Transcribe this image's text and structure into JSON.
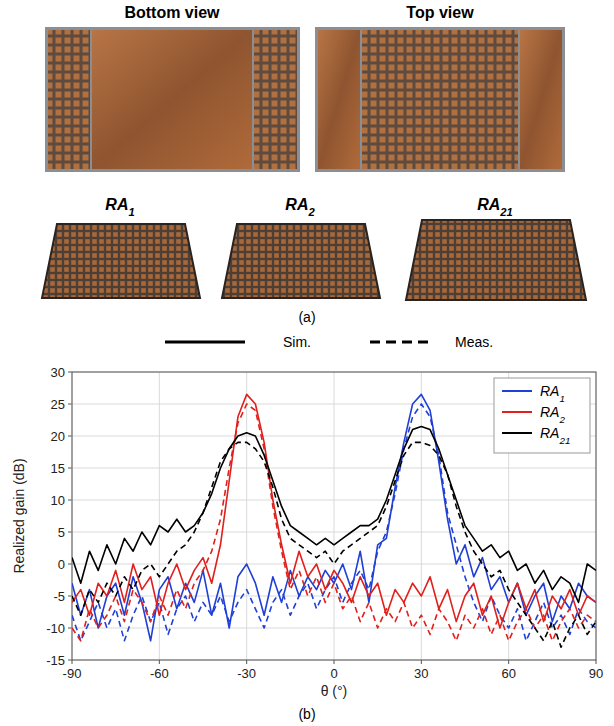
{
  "figure": {
    "panel_a": {
      "views": [
        "Bottom view",
        "Top view"
      ],
      "prototypes": [
        "RA1",
        "RA2",
        "RA21"
      ],
      "caption": "(a)"
    },
    "panel_b": {
      "caption": "(b)"
    }
  },
  "chart_data": {
    "type": "line",
    "x_label": "θ (°)",
    "y_label": "Realized gain (dB)",
    "annotations": [
      {
        "text": "Sim.",
        "line_style": "solid"
      },
      {
        "text": "Meas.",
        "line_style": "dashed"
      }
    ],
    "x": [
      -90,
      -87,
      -84,
      -81,
      -78,
      -75,
      -72,
      -69,
      -66,
      -63,
      -60,
      -57,
      -54,
      -51,
      -48,
      -45,
      -42,
      -39,
      -36,
      -33,
      -30,
      -27,
      -24,
      -21,
      -18,
      -15,
      -12,
      -9,
      -6,
      -3,
      0,
      3,
      6,
      9,
      12,
      15,
      18,
      21,
      24,
      27,
      30,
      33,
      36,
      39,
      42,
      45,
      48,
      51,
      54,
      57,
      60,
      63,
      66,
      69,
      72,
      75,
      78,
      81,
      84,
      87,
      90
    ],
    "xlim": [
      -90,
      90
    ],
    "xticks": [
      -90,
      -60,
      -30,
      0,
      30,
      60,
      90
    ],
    "ylim": [
      -15,
      30
    ],
    "yticks": [
      -15,
      -10,
      -5,
      0,
      5,
      10,
      15,
      20,
      25,
      30
    ],
    "grid": true,
    "legend": "upper right",
    "series": [
      {
        "name": "RA1",
        "color": "#1f3fd6",
        "line_style": "solid",
        "values": [
          -3,
          -8,
          -4,
          -10,
          -5,
          -3,
          -8,
          -2,
          -6,
          -12,
          -4,
          -2,
          -7,
          -3,
          -6,
          -1,
          -8,
          -3,
          -10,
          -2,
          0,
          -3,
          -8,
          -2,
          -6,
          -1,
          -5,
          -2,
          -4,
          -1,
          -3,
          0,
          -4,
          2,
          -6,
          3,
          4,
          12,
          19,
          25,
          26.5,
          24,
          16,
          7,
          0,
          3,
          -2,
          1,
          -4,
          -2,
          -6,
          -3,
          -8,
          -5,
          -3,
          -9,
          -5,
          -7,
          -3,
          -5,
          -6
        ]
      },
      {
        "name": "RA1",
        "color": "#1f3fd6",
        "line_style": "dashed",
        "values": [
          -8,
          -12,
          -9,
          -6,
          -10,
          -7,
          -12,
          -8,
          -5,
          -9,
          -6,
          -11,
          -7,
          -5,
          -9,
          -6,
          -8,
          -5,
          -9,
          -6,
          -4,
          -7,
          -10,
          -6,
          -4,
          -8,
          -5,
          -3,
          -7,
          -4,
          -2,
          -6,
          -3,
          -1,
          -4,
          2,
          5,
          11,
          18,
          23,
          25,
          23,
          17,
          8,
          3,
          -2,
          -6,
          -9,
          -5,
          -8,
          -10,
          -7,
          -12,
          -9,
          -6,
          -10,
          -8,
          -11,
          -7,
          -9,
          -10
        ]
      },
      {
        "name": "RA2",
        "color": "#e0201c",
        "line_style": "solid",
        "values": [
          -6,
          -4,
          -8,
          -3,
          -5,
          -1,
          -6,
          0,
          -4,
          -2,
          -8,
          -3,
          0,
          -4,
          -1,
          1,
          -3,
          3,
          13,
          23,
          26.5,
          25,
          19,
          10,
          3,
          -3,
          2,
          -2,
          0,
          -4,
          -1,
          -3,
          -6,
          -2,
          -5,
          -3,
          -8,
          -4,
          -6,
          -3,
          -5,
          -2,
          -7,
          -4,
          -9,
          -5,
          -3,
          -8,
          -5,
          -10,
          -6,
          -3,
          -7,
          -4,
          -9,
          -5,
          -7,
          -4,
          -8,
          -5,
          -6
        ]
      },
      {
        "name": "RA2",
        "color": "#e0201c",
        "line_style": "dashed",
        "values": [
          -10,
          -12,
          -7,
          -10,
          -8,
          -5,
          -9,
          -4,
          -6,
          -9,
          -5,
          -8,
          -4,
          -7,
          -3,
          -1,
          2,
          7,
          15,
          22,
          25,
          24,
          18,
          9,
          2,
          -4,
          -1,
          -5,
          -2,
          -6,
          -3,
          -7,
          -5,
          -9,
          -6,
          -10,
          -7,
          -9,
          -6,
          -10,
          -8,
          -11,
          -7,
          -9,
          -12,
          -8,
          -10,
          -7,
          -11,
          -8,
          -12,
          -9,
          -7,
          -10,
          -8,
          -12,
          -9,
          -7,
          -10,
          -8,
          -9
        ]
      },
      {
        "name": "RA21",
        "color": "#000000",
        "line_style": "solid",
        "values": [
          1,
          -3,
          2,
          -1,
          3,
          0,
          4,
          2,
          5,
          3,
          6,
          5,
          7,
          5,
          6,
          8,
          11,
          15,
          18,
          20,
          20.5,
          20,
          17,
          13,
          9,
          6,
          5,
          4,
          3,
          4,
          3,
          4,
          5,
          6,
          6,
          7,
          10,
          14,
          18,
          21,
          21.5,
          21,
          18,
          14,
          10,
          6,
          4,
          2,
          3,
          1,
          2,
          -1,
          0,
          -3,
          -1,
          -4,
          -2,
          -3,
          -6,
          0,
          -1
        ]
      },
      {
        "name": "RA21",
        "color": "#000000",
        "line_style": "dashed",
        "values": [
          -5,
          -8,
          -4,
          -6,
          -3,
          -5,
          -2,
          -4,
          -1,
          0,
          -2,
          0,
          2,
          3,
          5,
          8,
          12,
          16,
          18,
          19,
          19,
          18,
          16,
          12,
          7,
          4,
          3,
          2,
          1,
          2,
          0,
          2,
          3,
          4,
          5,
          6,
          9,
          13,
          17,
          19,
          19,
          18.5,
          17,
          14,
          9,
          5,
          2,
          0,
          -2,
          -1,
          -4,
          -6,
          -8,
          -10,
          -12,
          -9,
          -13,
          -10,
          -8,
          -11,
          -9
        ]
      }
    ]
  }
}
